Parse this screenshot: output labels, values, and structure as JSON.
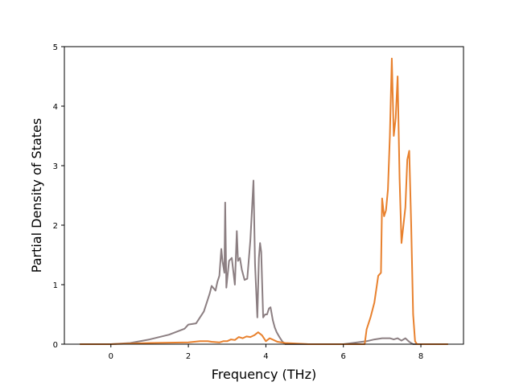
{
  "chart_data": {
    "type": "line",
    "title": "",
    "xlabel": "Frequency (THz)",
    "ylabel": "Partial Density of States",
    "xlim": [
      -1.2,
      9.1
    ],
    "ylim": [
      0,
      5
    ],
    "xticks": [
      0,
      2,
      4,
      6,
      8
    ],
    "yticks": [
      0,
      1,
      2,
      3,
      4,
      5
    ],
    "grid": false,
    "legend": "none",
    "series": [
      {
        "color": "#8c7f82",
        "x": [
          -0.8,
          0.0,
          0.5,
          1.0,
          1.5,
          1.9,
          2.0,
          2.2,
          2.3,
          2.4,
          2.5,
          2.55,
          2.6,
          2.7,
          2.75,
          2.8,
          2.85,
          2.88,
          2.93,
          2.95,
          2.98,
          3.05,
          3.12,
          3.2,
          3.25,
          3.28,
          3.33,
          3.38,
          3.45,
          3.52,
          3.6,
          3.68,
          3.72,
          3.78,
          3.82,
          3.85,
          3.88,
          3.93,
          3.98,
          4.03,
          4.08,
          4.12,
          4.18,
          4.23,
          4.28,
          4.35,
          4.42,
          4.5,
          4.55,
          4.62,
          4.75,
          4.9,
          5.05,
          5.1,
          5.3,
          6.0,
          6.6,
          6.8,
          7.0,
          7.2,
          7.3,
          7.4,
          7.5,
          7.6,
          7.7,
          7.8,
          7.9,
          8.1,
          8.4,
          8.7
        ],
        "y": [
          0.0,
          0.0,
          0.02,
          0.08,
          0.16,
          0.26,
          0.33,
          0.35,
          0.45,
          0.55,
          0.75,
          0.85,
          0.98,
          0.9,
          1.05,
          1.15,
          1.6,
          1.4,
          1.2,
          2.38,
          0.95,
          1.4,
          1.45,
          1.0,
          1.9,
          1.4,
          1.45,
          1.25,
          1.08,
          1.1,
          1.75,
          2.75,
          1.35,
          0.45,
          1.45,
          1.7,
          1.55,
          0.45,
          0.5,
          0.5,
          0.6,
          0.62,
          0.4,
          0.28,
          0.2,
          0.12,
          0.05,
          0.0,
          0.0,
          0.0,
          0.0,
          0.0,
          0.0,
          0.0,
          0.0,
          0.0,
          0.05,
          0.08,
          0.1,
          0.1,
          0.08,
          0.1,
          0.06,
          0.1,
          0.04,
          0.0,
          0.0,
          0.0,
          0.0,
          0.0
        ]
      },
      {
        "color": "#e8812e",
        "x": [
          -0.8,
          0.0,
          1.0,
          2.0,
          2.3,
          2.5,
          2.6,
          2.8,
          2.9,
          3.0,
          3.1,
          3.2,
          3.3,
          3.4,
          3.5,
          3.6,
          3.7,
          3.8,
          3.9,
          4.0,
          4.1,
          4.2,
          4.3,
          4.5,
          4.8,
          5.1,
          6.0,
          6.55,
          6.6,
          6.7,
          6.8,
          6.9,
          6.97,
          7.0,
          7.05,
          7.1,
          7.15,
          7.2,
          7.25,
          7.3,
          7.35,
          7.4,
          7.45,
          7.5,
          7.55,
          7.6,
          7.65,
          7.7,
          7.75,
          7.8,
          7.85,
          7.9,
          8.0,
          8.4,
          8.7
        ],
        "y": [
          0.0,
          0.0,
          0.02,
          0.03,
          0.05,
          0.05,
          0.04,
          0.03,
          0.05,
          0.05,
          0.08,
          0.07,
          0.12,
          0.1,
          0.13,
          0.12,
          0.15,
          0.2,
          0.15,
          0.05,
          0.1,
          0.07,
          0.04,
          0.02,
          0.01,
          0.0,
          0.0,
          0.0,
          0.25,
          0.45,
          0.7,
          1.15,
          1.2,
          2.45,
          2.15,
          2.25,
          2.6,
          3.5,
          4.8,
          3.5,
          3.8,
          4.5,
          2.8,
          1.7,
          2.0,
          2.3,
          3.1,
          3.25,
          2.0,
          0.5,
          0.05,
          0.0,
          0.0,
          0.0,
          0.0
        ]
      }
    ]
  }
}
